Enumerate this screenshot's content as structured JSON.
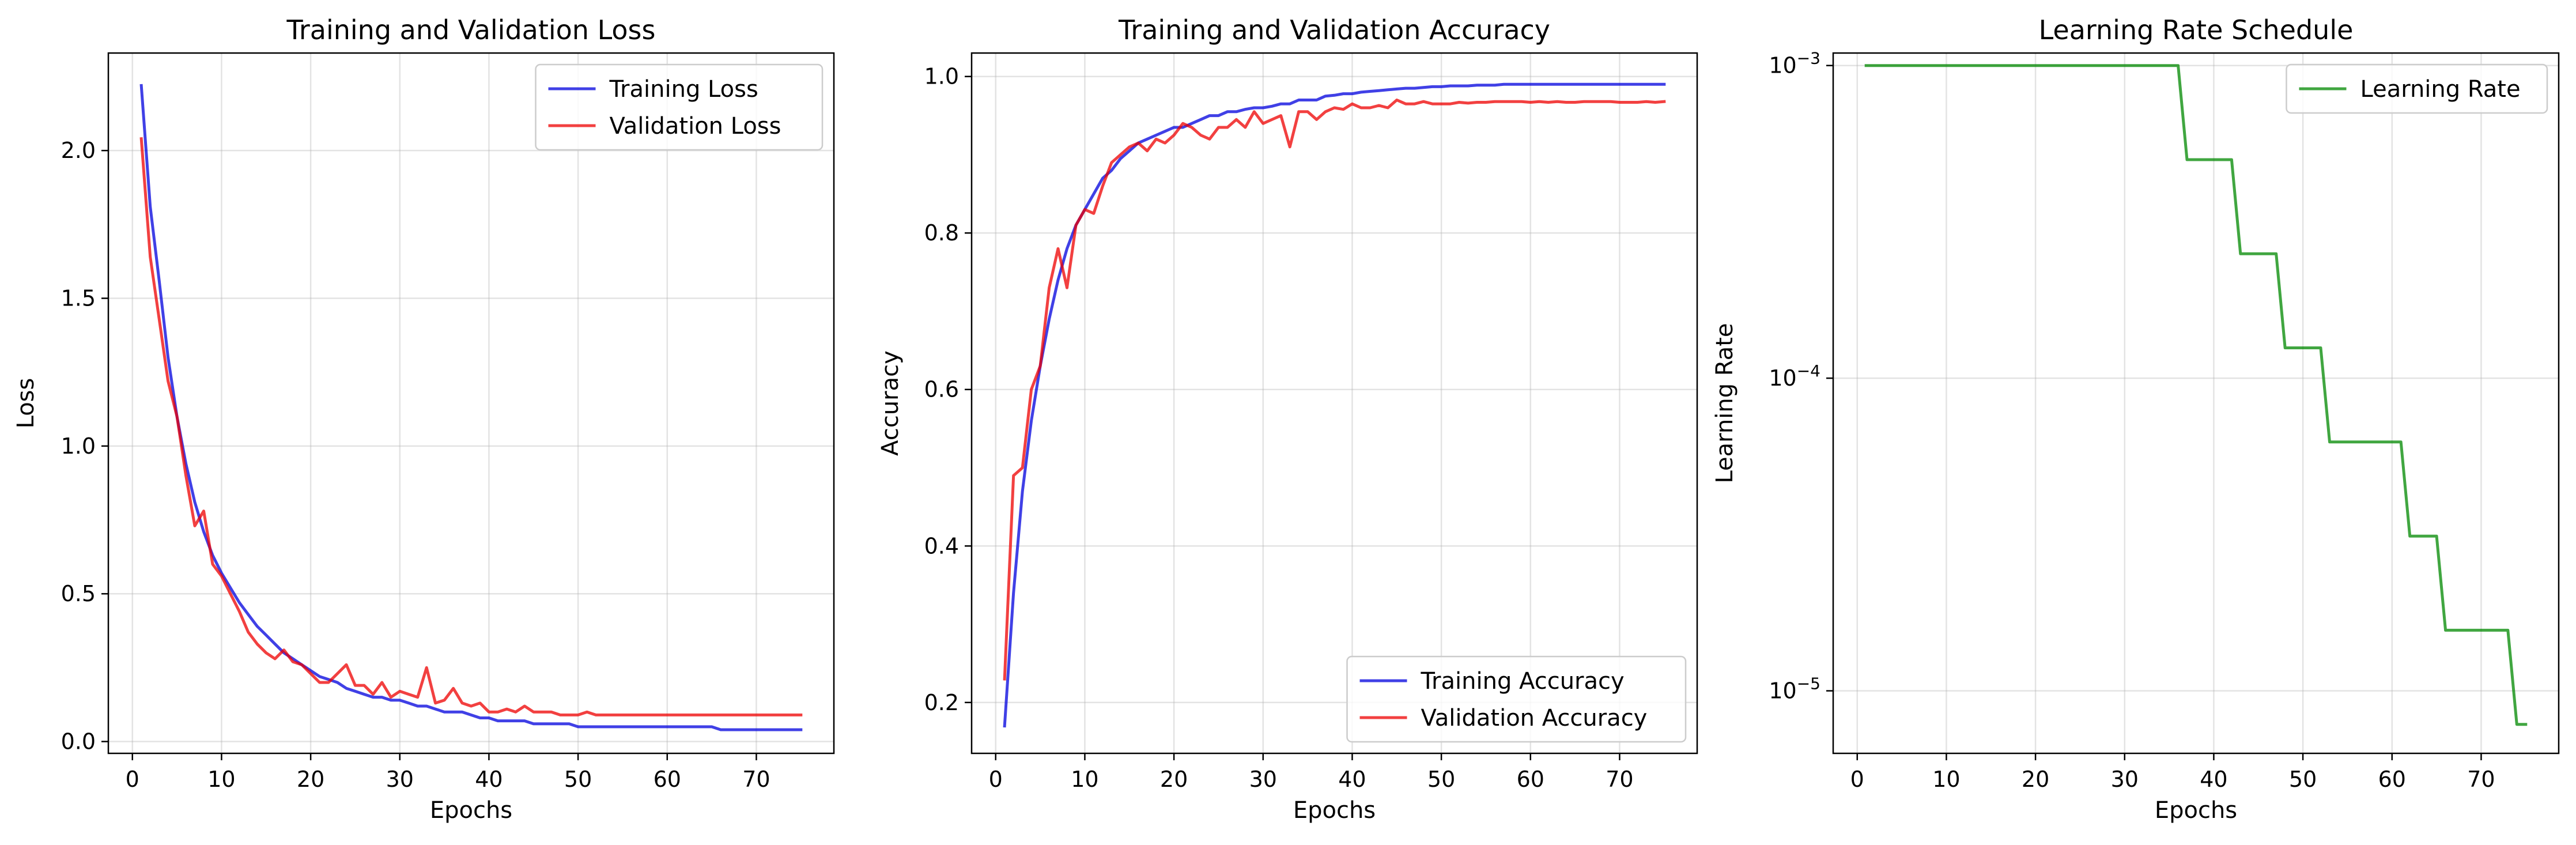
{
  "chart_data": [
    {
      "type": "line",
      "title": "Training and Validation Loss",
      "xlabel": "Epochs",
      "ylabel": "Loss",
      "xlim": [
        -2.7,
        78.7
      ],
      "ylim": [
        -0.04,
        2.33
      ],
      "xticks": [
        0,
        10,
        20,
        30,
        40,
        50,
        60,
        70
      ],
      "yticks": [
        0.0,
        0.5,
        1.0,
        1.5,
        2.0
      ],
      "ytick_labels": [
        "0.0",
        "0.5",
        "1.0",
        "1.5",
        "2.0"
      ],
      "grid": true,
      "legend_position": "upper right",
      "series": [
        {
          "name": "Training Loss",
          "color": "#0000dd",
          "x": [
            1,
            2,
            3,
            4,
            5,
            6,
            7,
            8,
            9,
            10,
            11,
            12,
            13,
            14,
            15,
            16,
            17,
            18,
            19,
            20,
            21,
            22,
            23,
            24,
            25,
            26,
            27,
            28,
            29,
            30,
            31,
            32,
            33,
            34,
            35,
            36,
            37,
            38,
            39,
            40,
            41,
            42,
            43,
            44,
            45,
            46,
            47,
            48,
            49,
            50,
            51,
            52,
            53,
            54,
            55,
            56,
            57,
            58,
            59,
            60,
            61,
            62,
            63,
            64,
            65,
            66,
            67,
            68,
            69,
            70,
            71,
            72,
            73,
            74,
            75
          ],
          "values": [
            2.22,
            1.81,
            1.56,
            1.3,
            1.1,
            0.94,
            0.81,
            0.71,
            0.63,
            0.57,
            0.52,
            0.47,
            0.43,
            0.39,
            0.36,
            0.33,
            0.3,
            0.28,
            0.26,
            0.24,
            0.22,
            0.21,
            0.2,
            0.18,
            0.17,
            0.16,
            0.15,
            0.15,
            0.14,
            0.14,
            0.13,
            0.12,
            0.12,
            0.11,
            0.1,
            0.1,
            0.1,
            0.09,
            0.08,
            0.08,
            0.07,
            0.07,
            0.07,
            0.07,
            0.06,
            0.06,
            0.06,
            0.06,
            0.06,
            0.05,
            0.05,
            0.05,
            0.05,
            0.05,
            0.05,
            0.05,
            0.05,
            0.05,
            0.05,
            0.05,
            0.05,
            0.05,
            0.05,
            0.05,
            0.05,
            0.04,
            0.04,
            0.04,
            0.04,
            0.04,
            0.04,
            0.04,
            0.04,
            0.04,
            0.04
          ]
        },
        {
          "name": "Validation Loss",
          "color": "#ee0000",
          "x": [
            1,
            2,
            3,
            4,
            5,
            6,
            7,
            8,
            9,
            10,
            11,
            12,
            13,
            14,
            15,
            16,
            17,
            18,
            19,
            20,
            21,
            22,
            23,
            24,
            25,
            26,
            27,
            28,
            29,
            30,
            31,
            32,
            33,
            34,
            35,
            36,
            37,
            38,
            39,
            40,
            41,
            42,
            43,
            44,
            45,
            46,
            47,
            48,
            49,
            50,
            51,
            52,
            53,
            54,
            55,
            56,
            57,
            58,
            59,
            60,
            61,
            62,
            63,
            64,
            65,
            66,
            67,
            68,
            69,
            70,
            71,
            72,
            73,
            74,
            75
          ],
          "values": [
            2.04,
            1.64,
            1.43,
            1.22,
            1.1,
            0.9,
            0.73,
            0.78,
            0.6,
            0.56,
            0.5,
            0.44,
            0.37,
            0.33,
            0.3,
            0.28,
            0.31,
            0.27,
            0.26,
            0.23,
            0.2,
            0.2,
            0.23,
            0.26,
            0.19,
            0.19,
            0.16,
            0.2,
            0.15,
            0.17,
            0.16,
            0.15,
            0.25,
            0.13,
            0.14,
            0.18,
            0.13,
            0.12,
            0.13,
            0.1,
            0.1,
            0.11,
            0.1,
            0.12,
            0.1,
            0.1,
            0.1,
            0.09,
            0.09,
            0.09,
            0.1,
            0.09,
            0.09,
            0.09,
            0.09,
            0.09,
            0.09,
            0.09,
            0.09,
            0.09,
            0.09,
            0.09,
            0.09,
            0.09,
            0.09,
            0.09,
            0.09,
            0.09,
            0.09,
            0.09,
            0.09,
            0.09,
            0.09,
            0.09,
            0.09
          ]
        }
      ]
    },
    {
      "type": "line",
      "title": "Training and Validation Accuracy",
      "xlabel": "Epochs",
      "ylabel": "Accuracy",
      "xlim": [
        -2.7,
        78.7
      ],
      "ylim": [
        0.135,
        1.03
      ],
      "xticks": [
        0,
        10,
        20,
        30,
        40,
        50,
        60,
        70
      ],
      "yticks": [
        0.2,
        0.4,
        0.6,
        0.8,
        1.0
      ],
      "ytick_labels": [
        "0.2",
        "0.4",
        "0.6",
        "0.8",
        "1.0"
      ],
      "grid": true,
      "legend_position": "lower right",
      "series": [
        {
          "name": "Training Accuracy",
          "color": "#0000dd",
          "x": [
            1,
            2,
            3,
            4,
            5,
            6,
            7,
            8,
            9,
            10,
            11,
            12,
            13,
            14,
            15,
            16,
            17,
            18,
            19,
            20,
            21,
            22,
            23,
            24,
            25,
            26,
            27,
            28,
            29,
            30,
            31,
            32,
            33,
            34,
            35,
            36,
            37,
            38,
            39,
            40,
            41,
            42,
            43,
            44,
            45,
            46,
            47,
            48,
            49,
            50,
            51,
            52,
            53,
            54,
            55,
            56,
            57,
            58,
            59,
            60,
            61,
            62,
            63,
            64,
            65,
            66,
            67,
            68,
            69,
            70,
            71,
            72,
            73,
            74,
            75
          ],
          "values": [
            0.17,
            0.34,
            0.47,
            0.56,
            0.63,
            0.69,
            0.74,
            0.78,
            0.81,
            0.83,
            0.85,
            0.87,
            0.88,
            0.895,
            0.905,
            0.915,
            0.92,
            0.925,
            0.93,
            0.935,
            0.935,
            0.94,
            0.945,
            0.95,
            0.95,
            0.955,
            0.955,
            0.958,
            0.96,
            0.96,
            0.962,
            0.965,
            0.965,
            0.97,
            0.97,
            0.97,
            0.975,
            0.976,
            0.978,
            0.978,
            0.98,
            0.981,
            0.982,
            0.983,
            0.984,
            0.985,
            0.985,
            0.986,
            0.987,
            0.987,
            0.988,
            0.988,
            0.988,
            0.989,
            0.989,
            0.989,
            0.99,
            0.99,
            0.99,
            0.99,
            0.99,
            0.99,
            0.99,
            0.99,
            0.99,
            0.99,
            0.99,
            0.99,
            0.99,
            0.99,
            0.99,
            0.99,
            0.99,
            0.99,
            0.99
          ]
        },
        {
          "name": "Validation Accuracy",
          "color": "#ee0000",
          "x": [
            1,
            2,
            3,
            4,
            5,
            6,
            7,
            8,
            9,
            10,
            11,
            12,
            13,
            14,
            15,
            16,
            17,
            18,
            19,
            20,
            21,
            22,
            23,
            24,
            25,
            26,
            27,
            28,
            29,
            30,
            31,
            32,
            33,
            34,
            35,
            36,
            37,
            38,
            39,
            40,
            41,
            42,
            43,
            44,
            45,
            46,
            47,
            48,
            49,
            50,
            51,
            52,
            53,
            54,
            55,
            56,
            57,
            58,
            59,
            60,
            61,
            62,
            63,
            64,
            65,
            66,
            67,
            68,
            69,
            70,
            71,
            72,
            73,
            74,
            75
          ],
          "values": [
            0.23,
            0.49,
            0.5,
            0.6,
            0.63,
            0.73,
            0.78,
            0.73,
            0.81,
            0.83,
            0.825,
            0.86,
            0.89,
            0.9,
            0.91,
            0.915,
            0.905,
            0.92,
            0.915,
            0.925,
            0.94,
            0.935,
            0.925,
            0.92,
            0.935,
            0.935,
            0.945,
            0.935,
            0.955,
            0.94,
            0.945,
            0.95,
            0.91,
            0.955,
            0.955,
            0.945,
            0.955,
            0.96,
            0.958,
            0.965,
            0.96,
            0.96,
            0.963,
            0.96,
            0.97,
            0.965,
            0.965,
            0.968,
            0.965,
            0.965,
            0.965,
            0.967,
            0.966,
            0.967,
            0.967,
            0.968,
            0.968,
            0.968,
            0.968,
            0.967,
            0.968,
            0.967,
            0.968,
            0.967,
            0.967,
            0.968,
            0.968,
            0.968,
            0.968,
            0.967,
            0.967,
            0.967,
            0.968,
            0.967,
            0.968
          ]
        }
      ]
    },
    {
      "type": "line",
      "title": "Learning Rate Schedule",
      "xlabel": "Epochs",
      "ylabel": "Learning Rate",
      "yscale": "log",
      "xlim": [
        -2.7,
        78.7
      ],
      "ylim_log10": [
        -5.2,
        -2.96
      ],
      "xticks": [
        0,
        10,
        20,
        30,
        40,
        50,
        60,
        70
      ],
      "yticks": [
        -5,
        -4,
        -3
      ],
      "ytick_labels": [
        {
          "base": "10",
          "exp": "−5"
        },
        {
          "base": "10",
          "exp": "−4"
        },
        {
          "base": "10",
          "exp": "−3"
        }
      ],
      "grid": true,
      "legend_position": "upper right",
      "series": [
        {
          "name": "Learning Rate",
          "color": "#008800",
          "x": [
            1,
            36,
            37,
            42,
            43,
            47,
            48,
            52,
            53,
            61,
            62,
            65,
            66,
            73,
            74,
            75
          ],
          "values": [
            0.001,
            0.001,
            0.0005,
            0.0005,
            0.00025,
            0.00025,
            0.000125,
            0.000125,
            6.25e-05,
            6.25e-05,
            3.125e-05,
            3.125e-05,
            1.5625e-05,
            1.5625e-05,
            7.8125e-06,
            7.8125e-06
          ]
        }
      ]
    }
  ]
}
